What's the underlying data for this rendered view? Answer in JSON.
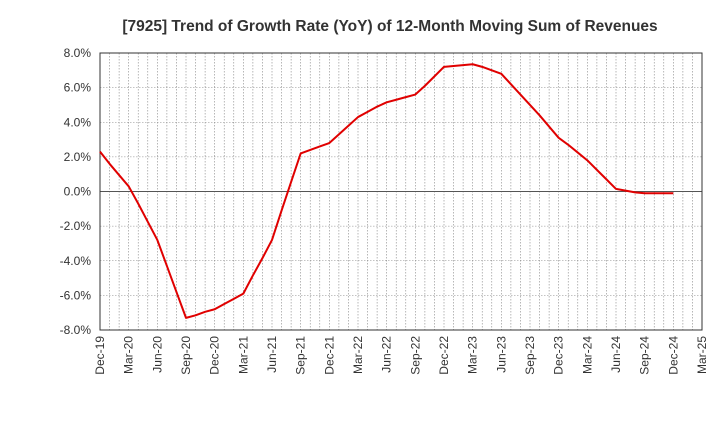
{
  "chart_data": {
    "type": "line",
    "title": "[7925]  Trend of Growth Rate (YoY) of 12-Month Moving Sum of Revenues",
    "xlabel": "",
    "ylabel": "",
    "ylim": [
      -8.0,
      8.0
    ],
    "y_ticks": [
      "8.0%",
      "6.0%",
      "4.0%",
      "2.0%",
      "0.0%",
      "-2.0%",
      "-4.0%",
      "-6.0%",
      "-8.0%"
    ],
    "y_tick_values": [
      8,
      6,
      4,
      2,
      0,
      -2,
      -4,
      -6,
      -8
    ],
    "x_ticks": [
      "Dec-19",
      "Mar-20",
      "Jun-20",
      "Sep-20",
      "Dec-20",
      "Mar-21",
      "Jun-21",
      "Sep-21",
      "Dec-21",
      "Mar-22",
      "Jun-22",
      "Sep-22",
      "Dec-22",
      "Mar-23",
      "Jun-23",
      "Sep-23",
      "Dec-23",
      "Mar-24",
      "Jun-24",
      "Sep-24",
      "Dec-24",
      "Mar-25"
    ],
    "grid": true,
    "series": [
      {
        "color": "#e00000",
        "x": [
          "Dec-19",
          "Jan-20",
          "Feb-20",
          "Mar-20",
          "Apr-20",
          "May-20",
          "Jun-20",
          "Jul-20",
          "Aug-20",
          "Sep-20",
          "Oct-20",
          "Nov-20",
          "Dec-20",
          "Jan-21",
          "Feb-21",
          "Mar-21",
          "Apr-21",
          "May-21",
          "Jun-21",
          "Jul-21",
          "Aug-21",
          "Sep-21",
          "Oct-21",
          "Nov-21",
          "Dec-21",
          "Jan-22",
          "Feb-22",
          "Mar-22",
          "Apr-22",
          "May-22",
          "Jun-22",
          "Jul-22",
          "Aug-22",
          "Sep-22",
          "Oct-22",
          "Nov-22",
          "Dec-22",
          "Jan-23",
          "Feb-23",
          "Mar-23",
          "Apr-23",
          "May-23",
          "Jun-23",
          "Jul-23",
          "Aug-23",
          "Sep-23",
          "Oct-23",
          "Nov-23",
          "Dec-23",
          "Jan-24",
          "Feb-24",
          "Mar-24",
          "Apr-24",
          "May-24",
          "Jun-24",
          "Jul-24",
          "Aug-24",
          "Sep-24",
          "Oct-24",
          "Nov-24",
          "Dec-24"
        ],
        "values": [
          2.3,
          1.6,
          0.95,
          0.3,
          -0.7,
          -1.75,
          -2.8,
          -4.3,
          -5.8,
          -7.3,
          -7.15,
          -6.95,
          -6.8,
          -6.5,
          -6.2,
          -5.9,
          -4.85,
          -3.85,
          -2.8,
          -1.1,
          0.55,
          2.2,
          2.4,
          2.6,
          2.8,
          3.3,
          3.8,
          4.3,
          4.6,
          4.9,
          5.15,
          5.3,
          5.45,
          5.6,
          6.1,
          6.65,
          7.2,
          7.25,
          7.3,
          7.35,
          7.2,
          7.0,
          6.8,
          6.2,
          5.6,
          5.0,
          4.4,
          3.75,
          3.1,
          2.7,
          2.25,
          1.8,
          1.25,
          0.7,
          0.15,
          0.05,
          -0.05,
          -0.1,
          -0.1,
          -0.1,
          -0.1
        ]
      }
    ]
  }
}
